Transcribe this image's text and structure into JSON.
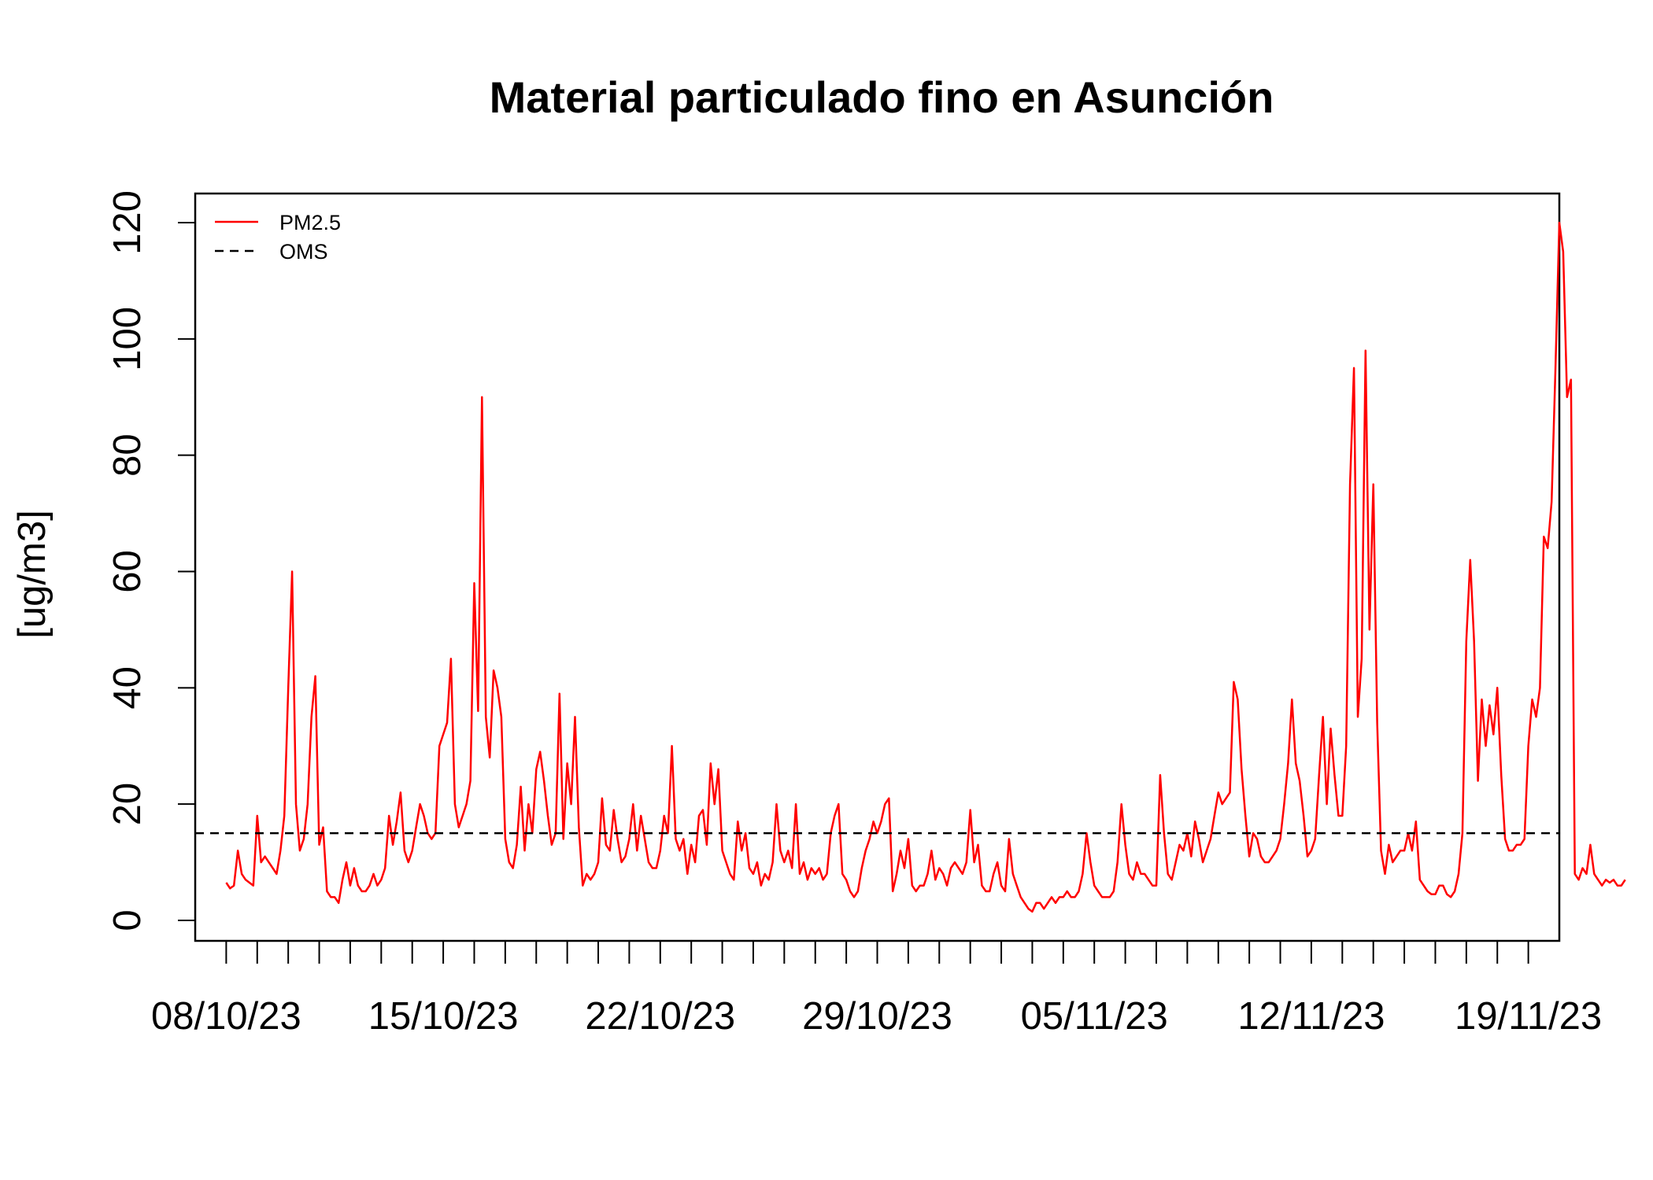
{
  "chart_data": {
    "type": "line",
    "title": "Material particulado fino en Asunción",
    "xlabel": "",
    "ylabel": "[ug/m3]",
    "ylim": [
      0,
      120
    ],
    "y_ticks": [
      0,
      20,
      40,
      60,
      80,
      100,
      120
    ],
    "x_tick_labels": [
      "08/10/23",
      "15/10/23",
      "22/10/23",
      "29/10/23",
      "05/11/23",
      "12/11/23",
      "19/11/23"
    ],
    "x_range_days": {
      "start": "2023-10-07",
      "end": "2023-11-20"
    },
    "legend": {
      "position": "top-left",
      "entries": [
        "PM2.5",
        "OMS"
      ]
    },
    "colors": {
      "pm25": "#ff0000",
      "oms": "#000000"
    },
    "series": [
      {
        "name": "PM2.5",
        "color": "#ff0000",
        "x_start": "2023-10-08",
        "step_days": 0.125,
        "values": [
          6.5,
          5.5,
          6,
          12,
          8,
          7,
          6.5,
          6,
          18,
          10,
          11,
          10,
          9,
          8,
          12,
          18,
          40,
          60,
          20,
          12,
          14,
          20,
          35,
          42,
          13,
          16,
          5,
          4,
          4,
          3,
          7,
          10,
          6,
          9,
          6,
          5,
          5,
          6,
          8,
          6,
          7,
          9,
          18,
          13,
          17,
          22,
          12,
          10,
          12,
          16,
          20,
          18,
          15,
          14,
          15,
          30,
          32,
          34,
          45,
          20,
          16,
          18,
          20,
          24,
          58,
          36,
          90,
          35,
          28,
          43,
          40,
          35,
          14,
          10,
          9,
          13,
          23,
          12,
          20,
          15,
          26,
          29,
          24,
          18,
          13,
          15,
          39,
          14,
          27,
          20,
          35,
          16,
          6,
          8,
          7,
          8,
          10,
          21,
          13,
          12,
          19,
          14,
          10,
          11,
          14,
          20,
          12,
          18,
          14,
          10,
          9,
          9,
          12,
          18,
          15,
          30,
          14,
          12,
          14,
          8,
          13,
          10,
          18,
          19,
          13,
          27,
          20,
          26,
          12,
          10,
          8,
          7,
          17,
          12,
          15,
          9,
          8,
          10,
          6,
          8,
          7,
          10,
          20,
          12,
          10,
          12,
          9,
          20,
          8,
          10,
          7,
          9,
          8,
          9,
          7,
          8,
          15,
          18,
          20,
          8,
          7,
          5,
          4,
          5,
          9,
          12,
          14,
          17,
          15,
          17,
          20,
          21,
          5,
          8,
          12,
          9,
          14,
          6,
          5,
          6,
          6,
          8,
          12,
          7,
          9,
          8,
          6,
          9,
          10,
          9,
          8,
          10,
          19,
          10,
          13,
          6,
          5,
          5,
          8,
          10,
          6,
          5,
          14,
          8,
          6,
          4,
          3,
          2,
          1.5,
          3,
          3,
          2,
          3,
          4,
          3,
          4,
          4,
          5,
          4,
          4,
          5,
          8,
          15,
          10,
          6,
          5,
          4,
          4,
          4,
          5,
          10,
          20,
          13,
          8,
          7,
          10,
          8,
          8,
          7,
          6,
          6,
          25,
          15,
          8,
          7,
          10,
          13,
          12,
          15,
          11,
          17,
          14,
          10,
          12,
          14,
          18,
          22,
          20,
          21,
          22,
          41,
          38,
          26,
          18,
          11,
          15,
          14,
          11,
          10,
          10,
          11,
          12,
          14,
          20,
          27,
          38,
          27,
          24,
          18,
          11,
          12,
          14,
          25,
          35,
          20,
          33,
          25,
          18,
          18,
          30,
          75,
          95,
          35,
          45,
          98,
          50,
          75,
          34,
          12,
          8,
          13,
          10,
          11,
          12,
          12,
          15,
          12,
          17,
          7,
          6,
          5,
          4.5,
          4.5,
          6,
          6,
          4.5,
          4,
          5,
          8,
          15,
          48,
          62,
          48,
          24,
          38,
          30,
          37,
          32,
          40,
          25,
          14,
          12,
          12,
          13,
          13,
          14,
          30,
          38,
          35,
          40,
          66,
          64,
          72,
          95,
          120,
          115,
          90,
          93,
          8,
          7,
          9,
          8,
          13,
          8,
          7,
          6,
          7,
          6.5,
          7,
          6,
          6,
          7
        ]
      },
      {
        "name": "OMS",
        "color": "#000000",
        "dashed": true,
        "constant_value": 15
      }
    ]
  }
}
